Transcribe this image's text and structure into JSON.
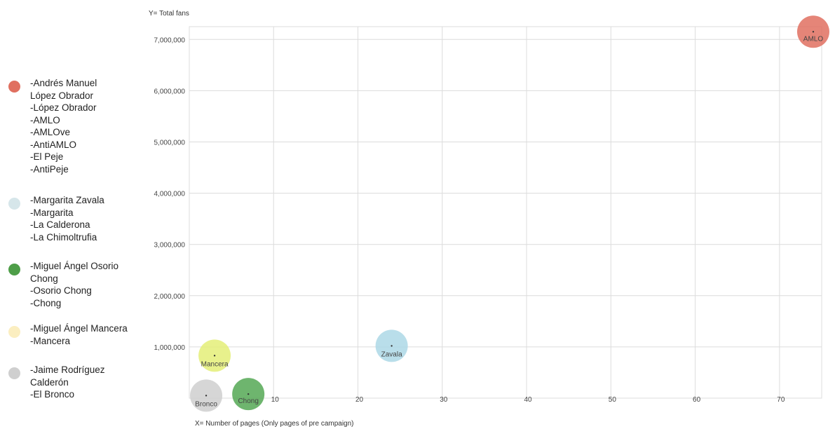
{
  "chart_data": {
    "type": "scatter",
    "title": "",
    "xlabel": "X= Number of pages (Only pages of pre campaign)",
    "ylabel": "Y= Total fans",
    "xlim": [
      0,
      75
    ],
    "ylim": [
      0,
      7250000
    ],
    "x_ticks": [
      10,
      20,
      30,
      40,
      50,
      60,
      70
    ],
    "y_ticks": [
      1000000,
      2000000,
      3000000,
      4000000,
      5000000,
      6000000,
      7000000
    ],
    "y_tick_labels": [
      "1,000,000",
      "2,000,000",
      "3,000,000",
      "4,000,000",
      "5,000,000",
      "6,000,000",
      "7,000,000"
    ],
    "grid": true,
    "legend_position": "left",
    "series": [
      {
        "name": "AMLO",
        "color": "#e07060",
        "x": 74,
        "y": 7150000,
        "aliases": [
          "-Andrés Manuel",
          "López Obrador",
          "-López Obrador",
          "-AMLO",
          "-AMLOve",
          "-AntiAMLO",
          "-El Peje",
          "-AntiPeje"
        ]
      },
      {
        "name": "Zavala",
        "color": "#add8e6",
        "x": 24,
        "y": 1020000,
        "aliases": [
          "-Margarita Zavala",
          "-Margarita",
          "-La Calderona",
          "-La Chimoltrufia"
        ]
      },
      {
        "name": "Chong",
        "color": "#55a855",
        "x": 7,
        "y": 80000,
        "aliases": [
          "-Miguel Ángel Osorio",
          "Chong",
          "-Osorio Chong",
          "-Chong"
        ]
      },
      {
        "name": "Mancera",
        "color": "#e4ef78",
        "x": 3,
        "y": 830000,
        "aliases": [
          "-Miguel Ángel Mancera",
          "-Mancera"
        ]
      },
      {
        "name": "Bronco",
        "color": "#cfcfcf",
        "x": 2,
        "y": 50000,
        "aliases": [
          "-Jaime Rodríguez",
          "Calderón",
          "-El Bronco"
        ]
      }
    ]
  },
  "legend": {
    "groups": [
      {
        "color": "#e07060",
        "aliases": [
          "-Andrés Manuel",
          "López Obrador",
          "-López Obrador",
          "-AMLO",
          "-AMLOve",
          "-AntiAMLO",
          "-El Peje",
          "-AntiPeje"
        ]
      },
      {
        "color": "#d6e6ea",
        "aliases": [
          "-Margarita Zavala",
          "-Margarita",
          "-La Calderona",
          "-La Chimoltrufia"
        ]
      },
      {
        "color": "#4e9e48",
        "aliases": [
          "-Miguel Ángel Osorio",
          "Chong",
          "-Osorio Chong",
          "-Chong"
        ]
      },
      {
        "color": "#fbeec0",
        "aliases": [
          "-Miguel Ángel Mancera",
          "-Mancera"
        ]
      },
      {
        "color": "#cfcfcf",
        "aliases": [
          "-Jaime Rodríguez",
          "Calderón",
          "-El Bronco"
        ]
      }
    ]
  }
}
